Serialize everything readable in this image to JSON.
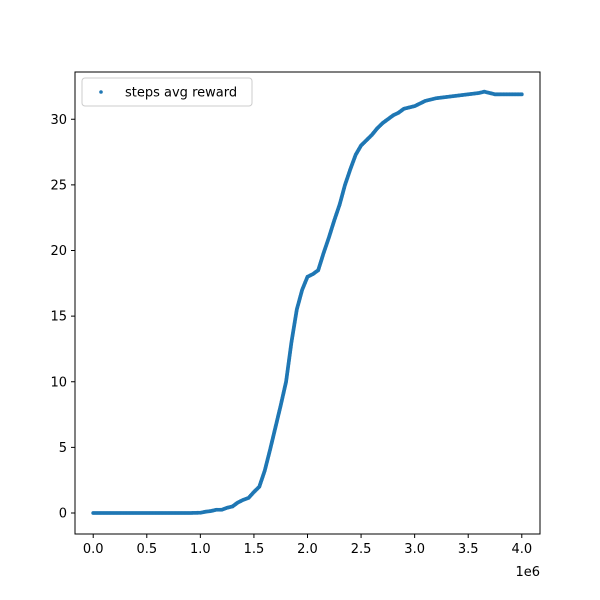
{
  "chart_data": {
    "type": "scatter",
    "title": "",
    "xlabel": "",
    "ylabel": "",
    "x_offset_label": "1e6",
    "xlim": [
      -0.17,
      4.17
    ],
    "ylim": [
      -1.6,
      33.6
    ],
    "x_ticks": [
      0.0,
      0.5,
      1.0,
      1.5,
      2.0,
      2.5,
      3.0,
      3.5,
      4.0
    ],
    "x_tick_labels": [
      "0.0",
      "0.5",
      "1.0",
      "1.5",
      "2.0",
      "2.5",
      "3.0",
      "3.5",
      "4.0"
    ],
    "y_ticks": [
      0,
      5,
      10,
      15,
      20,
      25,
      30
    ],
    "y_tick_labels": [
      "0",
      "5",
      "10",
      "15",
      "20",
      "25",
      "30"
    ],
    "grid": false,
    "legend_position": "top-left",
    "series": [
      {
        "name": "steps avg reward",
        "color": "#1f77b4",
        "points": [
          [
            0.0,
            0.0
          ],
          [
            0.1,
            0.0
          ],
          [
            0.2,
            0.0
          ],
          [
            0.3,
            0.0
          ],
          [
            0.4,
            0.0
          ],
          [
            0.5,
            0.0
          ],
          [
            0.6,
            0.0
          ],
          [
            0.7,
            0.0
          ],
          [
            0.8,
            0.0
          ],
          [
            0.9,
            0.0
          ],
          [
            1.0,
            0.02
          ],
          [
            1.05,
            0.1
          ],
          [
            1.1,
            0.15
          ],
          [
            1.15,
            0.25
          ],
          [
            1.2,
            0.25
          ],
          [
            1.25,
            0.4
          ],
          [
            1.3,
            0.5
          ],
          [
            1.35,
            0.8
          ],
          [
            1.4,
            1.0
          ],
          [
            1.45,
            1.15
          ],
          [
            1.5,
            1.6
          ],
          [
            1.55,
            2.0
          ],
          [
            1.6,
            3.2
          ],
          [
            1.65,
            4.8
          ],
          [
            1.7,
            6.5
          ],
          [
            1.75,
            8.2
          ],
          [
            1.8,
            10.0
          ],
          [
            1.85,
            13.0
          ],
          [
            1.9,
            15.5
          ],
          [
            1.95,
            17.0
          ],
          [
            2.0,
            18.0
          ],
          [
            2.05,
            18.2
          ],
          [
            2.1,
            18.5
          ],
          [
            2.15,
            19.8
          ],
          [
            2.2,
            21.0
          ],
          [
            2.25,
            22.3
          ],
          [
            2.3,
            23.5
          ],
          [
            2.35,
            25.0
          ],
          [
            2.4,
            26.2
          ],
          [
            2.45,
            27.3
          ],
          [
            2.5,
            28.0
          ],
          [
            2.55,
            28.4
          ],
          [
            2.6,
            28.8
          ],
          [
            2.65,
            29.3
          ],
          [
            2.7,
            29.7
          ],
          [
            2.75,
            30.0
          ],
          [
            2.8,
            30.3
          ],
          [
            2.85,
            30.5
          ],
          [
            2.9,
            30.8
          ],
          [
            2.95,
            30.9
          ],
          [
            3.0,
            31.0
          ],
          [
            3.1,
            31.4
          ],
          [
            3.2,
            31.6
          ],
          [
            3.3,
            31.7
          ],
          [
            3.4,
            31.8
          ],
          [
            3.5,
            31.9
          ],
          [
            3.6,
            32.0
          ],
          [
            3.65,
            32.1
          ],
          [
            3.7,
            32.0
          ],
          [
            3.75,
            31.9
          ],
          [
            3.8,
            31.9
          ],
          [
            3.9,
            31.9
          ],
          [
            4.0,
            31.9
          ]
        ]
      }
    ]
  }
}
